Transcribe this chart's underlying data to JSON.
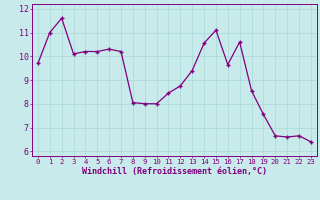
{
  "x": [
    0,
    1,
    2,
    3,
    4,
    5,
    6,
    7,
    8,
    9,
    10,
    11,
    12,
    13,
    14,
    15,
    16,
    17,
    18,
    19,
    20,
    21,
    22,
    23
  ],
  "y": [
    9.7,
    11.0,
    11.6,
    10.1,
    10.2,
    10.2,
    10.3,
    10.2,
    8.05,
    8.0,
    8.0,
    8.45,
    8.75,
    9.4,
    10.55,
    11.1,
    9.65,
    10.6,
    8.55,
    7.55,
    6.65,
    6.6,
    6.65,
    6.4
  ],
  "line_color": "#800080",
  "marker": "+",
  "bg_color": "#c8eaea",
  "grid_color": "#a8d8d8",
  "xlabel": "Windchill (Refroidissement éolien,°C)",
  "ylabel_ticks": [
    6,
    7,
    8,
    9,
    10,
    11,
    12
  ],
  "xlim": [
    -0.5,
    23.5
  ],
  "ylim": [
    5.8,
    12.2
  ],
  "xlabel_color": "#800080",
  "tick_color": "#800080",
  "spine_color": "#800080",
  "axis_bg": "#c8eaea",
  "xlabel_fontsize": 6.0,
  "ytick_fontsize": 6.0,
  "xtick_fontsize": 5.2
}
